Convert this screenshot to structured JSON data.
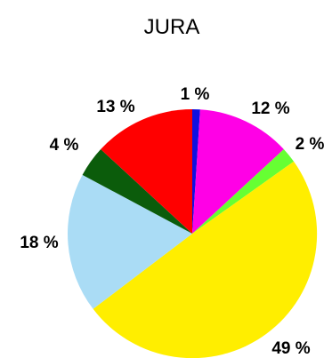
{
  "chart_data": {
    "type": "pie",
    "title": "JURA",
    "legend": "none",
    "slices": [
      {
        "label": "1 %",
        "value": 1,
        "color": "#1010e0"
      },
      {
        "label": "12 %",
        "value": 12,
        "color": "#ff00e6"
      },
      {
        "label": "2 %",
        "value": 2,
        "color": "#66ff33"
      },
      {
        "label": "49 %",
        "value": 49,
        "color": "#ffee00"
      },
      {
        "label": "18 %",
        "value": 18,
        "color": "#aadcf5"
      },
      {
        "label": "4 %",
        "value": 4,
        "color": "#0b5c0b"
      },
      {
        "label": "13 %",
        "value": 13,
        "color": "#ff0000"
      }
    ]
  }
}
